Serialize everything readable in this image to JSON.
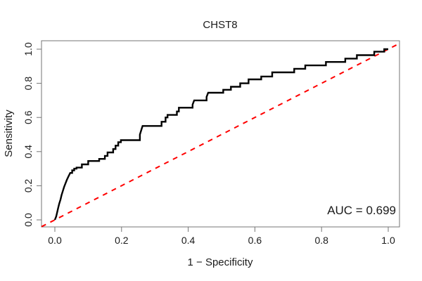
{
  "title": "CHST8",
  "axes": {
    "x_label": "1 − Specificity",
    "y_label": "Sensitivity",
    "x_ticks": [
      {
        "value": 0.0,
        "label": "0.0"
      },
      {
        "value": 0.2,
        "label": "0.2"
      },
      {
        "value": 0.4,
        "label": "0.4"
      },
      {
        "value": 0.6,
        "label": "0.6"
      },
      {
        "value": 0.8,
        "label": "0.8"
      },
      {
        "value": 1.0,
        "label": "1.0"
      }
    ],
    "y_ticks": [
      {
        "value": 0.0,
        "label": "0.0"
      },
      {
        "value": 0.2,
        "label": "0.2"
      },
      {
        "value": 0.4,
        "label": "0.4"
      },
      {
        "value": 0.6,
        "label": "0.6"
      },
      {
        "value": 0.8,
        "label": "0.8"
      },
      {
        "value": 1.0,
        "label": "1.0"
      }
    ]
  },
  "annotation": {
    "auc_label": "AUC = 0.699"
  },
  "colors": {
    "curve": "#000000",
    "diagonal": "#ff0000",
    "box": "#757575",
    "tick": "#757575",
    "text": "#1a1a1a",
    "background": "#ffffff"
  },
  "chart_data": {
    "type": "line",
    "title": "CHST8",
    "xlabel": "1 − Specificity",
    "ylabel": "Sensitivity",
    "xlim": [
      0,
      1
    ],
    "ylim": [
      0,
      1
    ],
    "grid": false,
    "auc": 0.699,
    "curve_style": "step-after",
    "diagonal_reference": {
      "style": "dashed",
      "color": "#ff0000",
      "from": [
        0,
        0
      ],
      "to": [
        1,
        1
      ]
    },
    "series": [
      {
        "name": "ROC curve",
        "points": [
          [
            0.0,
            0.0
          ],
          [
            0.004,
            0.02
          ],
          [
            0.007,
            0.045
          ],
          [
            0.01,
            0.07
          ],
          [
            0.013,
            0.095
          ],
          [
            0.017,
            0.12
          ],
          [
            0.02,
            0.145
          ],
          [
            0.024,
            0.17
          ],
          [
            0.028,
            0.195
          ],
          [
            0.032,
            0.215
          ],
          [
            0.036,
            0.235
          ],
          [
            0.041,
            0.255
          ],
          [
            0.046,
            0.275
          ],
          [
            0.052,
            0.29
          ],
          [
            0.058,
            0.3
          ],
          [
            0.065,
            0.306
          ],
          [
            0.081,
            0.325
          ],
          [
            0.1,
            0.345
          ],
          [
            0.133,
            0.357
          ],
          [
            0.15,
            0.375
          ],
          [
            0.158,
            0.395
          ],
          [
            0.175,
            0.415
          ],
          [
            0.182,
            0.435
          ],
          [
            0.19,
            0.455
          ],
          [
            0.198,
            0.467
          ],
          [
            0.255,
            0.5
          ],
          [
            0.259,
            0.525
          ],
          [
            0.263,
            0.55
          ],
          [
            0.32,
            0.575
          ],
          [
            0.332,
            0.6
          ],
          [
            0.338,
            0.615
          ],
          [
            0.366,
            0.635
          ],
          [
            0.372,
            0.657
          ],
          [
            0.413,
            0.675
          ],
          [
            0.418,
            0.7
          ],
          [
            0.455,
            0.72
          ],
          [
            0.46,
            0.745
          ],
          [
            0.505,
            0.762
          ],
          [
            0.528,
            0.78
          ],
          [
            0.556,
            0.8
          ],
          [
            0.581,
            0.823
          ],
          [
            0.619,
            0.84
          ],
          [
            0.652,
            0.864
          ],
          [
            0.718,
            0.885
          ],
          [
            0.751,
            0.905
          ],
          [
            0.813,
            0.925
          ],
          [
            0.871,
            0.945
          ],
          [
            0.906,
            0.965
          ],
          [
            0.958,
            0.985
          ],
          [
            0.988,
            1.0
          ],
          [
            1.0,
            1.0
          ]
        ]
      }
    ]
  }
}
